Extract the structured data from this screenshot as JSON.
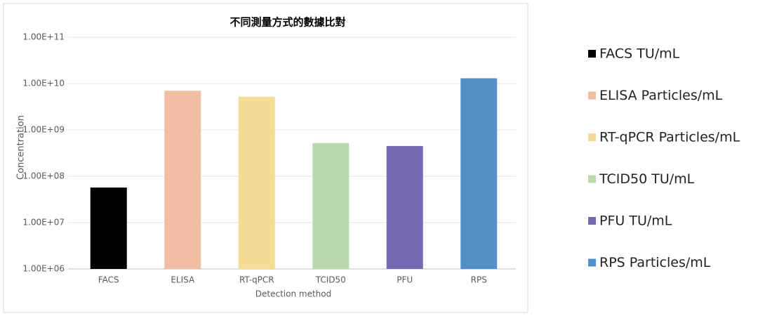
{
  "chart_data": {
    "type": "bar",
    "title": "不同測量方式的數據比對",
    "x_label": "Detection method",
    "y_label": "Concentration",
    "categories": [
      "FACS",
      "ELISA",
      "RT-qPCR",
      "TCID50",
      "PFU",
      "RPS"
    ],
    "values": [
      57000000,
      7000000000,
      5200000000,
      520000000,
      450000000,
      13000000000
    ],
    "colors": [
      "#000000",
      "#f2bea3",
      "#f6db94",
      "#b8d9ab",
      "#7669b0",
      "#5390c8"
    ],
    "legend": [
      "FACS TU/mL",
      "ELISA Particles/mL",
      "RT-qPCR Particles/mL",
      "TCID50 TU/mL",
      "PFU TU/mL",
      "RPS Particles/mL"
    ],
    "legend_position": "right",
    "y_scale": "log",
    "ylim": [
      1000000,
      100000000000
    ],
    "yticks": [
      {
        "value": 1000000,
        "label": "1.00E+06"
      },
      {
        "value": 10000000,
        "label": "1.00E+07"
      },
      {
        "value": 100000000,
        "label": "1.00E+08"
      },
      {
        "value": 1000000000,
        "label": "1.00E+09"
      },
      {
        "value": 10000000000,
        "label": "1.00E+10"
      },
      {
        "value": 100000000000,
        "label": "1.00E+11"
      }
    ],
    "grid": true
  }
}
